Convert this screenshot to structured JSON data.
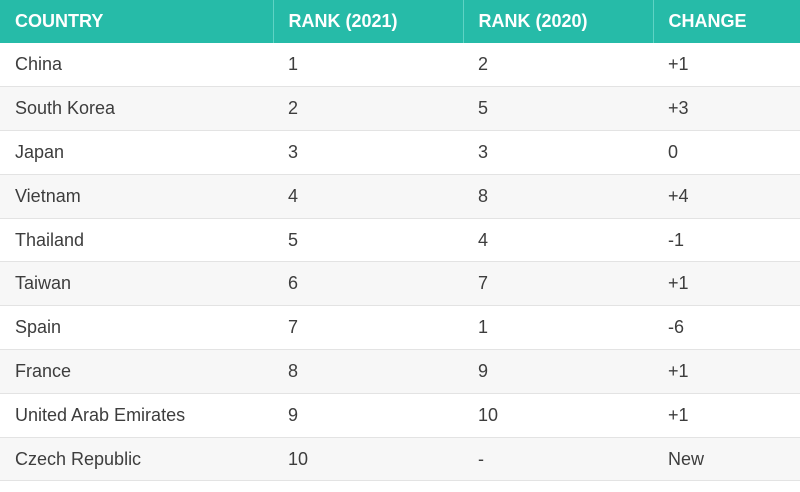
{
  "table": {
    "headers": [
      "COUNTRY",
      "RANK (2021)",
      "RANK (2020)",
      "CHANGE"
    ],
    "rows": [
      [
        "China",
        "1",
        "2",
        "+1"
      ],
      [
        "South Korea",
        "2",
        "5",
        "+3"
      ],
      [
        "Japan",
        "3",
        "3",
        "0"
      ],
      [
        "Vietnam",
        "4",
        "8",
        "+4"
      ],
      [
        "Thailand",
        "5",
        "4",
        "-1"
      ],
      [
        "Taiwan",
        "6",
        "7",
        "+1"
      ],
      [
        "Spain",
        "7",
        "1",
        "-6"
      ],
      [
        "France",
        "8",
        "9",
        "+1"
      ],
      [
        "United Arab Emirates",
        "9",
        "10",
        "+1"
      ],
      [
        "Czech Republic",
        "10",
        "-",
        "New"
      ]
    ]
  },
  "colors": {
    "header_bg": "#26bba8",
    "header_text": "#ffffff",
    "row_alt_bg": "#f7f7f7",
    "cell_text": "#3d3d3d"
  }
}
